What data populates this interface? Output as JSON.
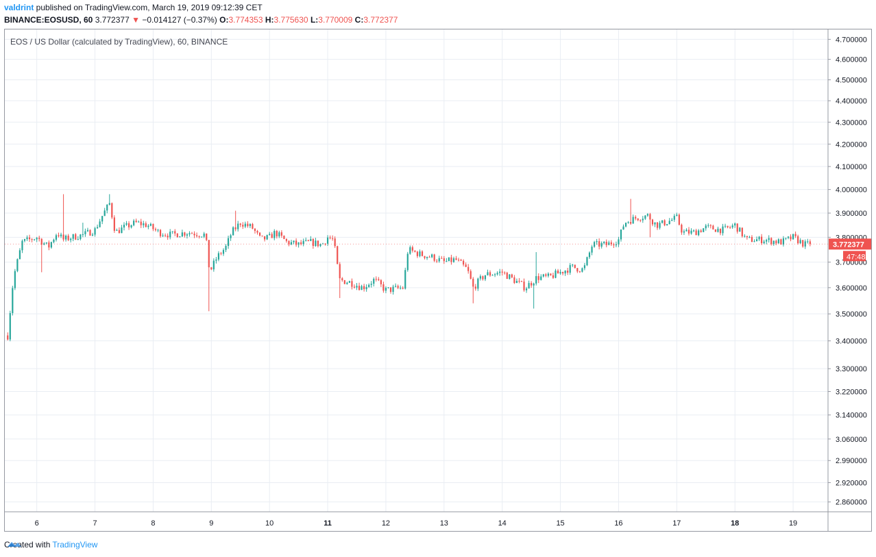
{
  "header": {
    "user": "valdrint",
    "published_text": " published on TradingView.com, March 19, 2019 09:12:39 CET",
    "symbol": "BINANCE:EOSUSD, 60",
    "last": "3.772377",
    "change_arrow": "▼",
    "change": "−0.014127 (−0.37%)",
    "o_label": "O:",
    "o_value": "3.774353",
    "h_label": "H:",
    "h_value": "3.775630",
    "l_label": "L:",
    "l_value": "3.770009",
    "c_label": "C:",
    "c_value": "3.772377"
  },
  "legend": "EOS / US Dollar (calculated by TradingView), 60, BINANCE",
  "price_label": "3.772377",
  "countdown_label": "47:48",
  "footer": {
    "created_with": "Created with",
    "brand": "TradingView"
  },
  "colors": {
    "up": "#26a69a",
    "down": "#ef5350",
    "grid": "#e9edf3",
    "axis_text": "#131722",
    "brand": "#2196f3"
  },
  "chart_data": {
    "type": "candlestick",
    "title": "EOS / US Dollar (calculated by TradingView), 60, BINANCE",
    "y_axis_scale": "log",
    "ylim": [
      2.83,
      4.75
    ],
    "y_ticks": [
      "4.700000",
      "4.600000",
      "4.500000",
      "4.400000",
      "4.300000",
      "4.200000",
      "4.100000",
      "4.000000",
      "3.900000",
      "3.800000",
      "3.700000",
      "3.600000",
      "3.500000",
      "3.400000",
      "3.300000",
      "3.220000",
      "3.140000",
      "3.060000",
      "2.990000",
      "2.920000",
      "2.860000"
    ],
    "x_ticks": [
      "6",
      "7",
      "8",
      "9",
      "10",
      "11",
      "12",
      "13",
      "14",
      "15",
      "16",
      "17",
      "18",
      "19"
    ],
    "x_ticks_bold": [
      "11",
      "18"
    ],
    "x_range_days": [
      5.45,
      19.6
    ],
    "first_candle_day": 5.5,
    "bar_hours": 1,
    "last_close": 3.772377,
    "path_anchors": [
      [
        5.5,
        3.42
      ],
      [
        5.6,
        3.64
      ],
      [
        5.75,
        3.78
      ],
      [
        6.0,
        3.8
      ],
      [
        6.2,
        3.76
      ],
      [
        6.35,
        3.82
      ],
      [
        6.45,
        3.79
      ],
      [
        6.6,
        3.8
      ],
      [
        6.8,
        3.81
      ],
      [
        7.0,
        3.83
      ],
      [
        7.15,
        3.9
      ],
      [
        7.25,
        3.94
      ],
      [
        7.35,
        3.82
      ],
      [
        7.5,
        3.84
      ],
      [
        7.7,
        3.86
      ],
      [
        7.9,
        3.85
      ],
      [
        8.1,
        3.82
      ],
      [
        8.3,
        3.81
      ],
      [
        8.6,
        3.82
      ],
      [
        8.9,
        3.81
      ],
      [
        8.97,
        3.66
      ],
      [
        9.1,
        3.72
      ],
      [
        9.25,
        3.76
      ],
      [
        9.35,
        3.82
      ],
      [
        9.5,
        3.86
      ],
      [
        9.7,
        3.84
      ],
      [
        9.85,
        3.79
      ],
      [
        10.0,
        3.8
      ],
      [
        10.1,
        3.82
      ],
      [
        10.3,
        3.78
      ],
      [
        10.5,
        3.77
      ],
      [
        10.7,
        3.78
      ],
      [
        10.9,
        3.77
      ],
      [
        11.0,
        3.8
      ],
      [
        11.1,
        3.79
      ],
      [
        11.2,
        3.63
      ],
      [
        11.4,
        3.62
      ],
      [
        11.6,
        3.6
      ],
      [
        11.8,
        3.63
      ],
      [
        12.0,
        3.59
      ],
      [
        12.3,
        3.6
      ],
      [
        12.38,
        3.75
      ],
      [
        12.6,
        3.73
      ],
      [
        12.8,
        3.72
      ],
      [
        13.0,
        3.7
      ],
      [
        13.2,
        3.71
      ],
      [
        13.4,
        3.67
      ],
      [
        13.5,
        3.6
      ],
      [
        13.7,
        3.65
      ],
      [
        14.0,
        3.66
      ],
      [
        14.2,
        3.63
      ],
      [
        14.4,
        3.6
      ],
      [
        14.6,
        3.64
      ],
      [
        14.8,
        3.64
      ],
      [
        15.0,
        3.66
      ],
      [
        15.2,
        3.68
      ],
      [
        15.4,
        3.67
      ],
      [
        15.55,
        3.77
      ],
      [
        15.8,
        3.77
      ],
      [
        16.0,
        3.79
      ],
      [
        16.1,
        3.86
      ],
      [
        16.3,
        3.88
      ],
      [
        16.5,
        3.89
      ],
      [
        16.65,
        3.85
      ],
      [
        16.8,
        3.86
      ],
      [
        17.0,
        3.88
      ],
      [
        17.1,
        3.82
      ],
      [
        17.3,
        3.82
      ],
      [
        17.5,
        3.84
      ],
      [
        17.8,
        3.83
      ],
      [
        18.0,
        3.85
      ],
      [
        18.2,
        3.79
      ],
      [
        18.5,
        3.79
      ],
      [
        18.8,
        3.78
      ],
      [
        19.0,
        3.8
      ],
      [
        19.2,
        3.77
      ],
      [
        19.33,
        3.7724
      ]
    ],
    "spikes": [
      [
        5.55,
        3.56,
        "down"
      ],
      [
        6.08,
        3.66,
        "down"
      ],
      [
        6.45,
        3.98,
        "up"
      ],
      [
        6.8,
        3.86,
        "up"
      ],
      [
        7.25,
        3.98,
        "up"
      ],
      [
        8.94,
        3.51,
        "down"
      ],
      [
        9.42,
        3.91,
        "up"
      ],
      [
        11.2,
        3.56,
        "down"
      ],
      [
        13.5,
        3.54,
        "down"
      ],
      [
        14.55,
        3.52,
        "down"
      ],
      [
        14.6,
        3.74,
        "up"
      ],
      [
        16.2,
        3.96,
        "up"
      ],
      [
        16.55,
        3.8,
        "down"
      ]
    ]
  }
}
